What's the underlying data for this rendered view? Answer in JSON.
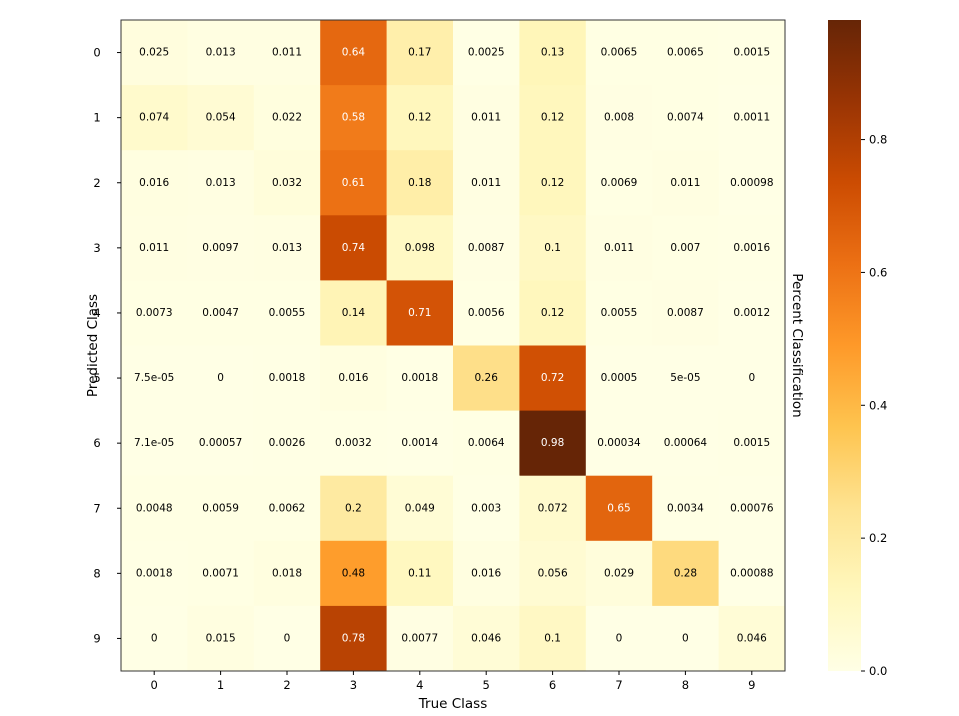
{
  "chart_data": {
    "type": "heatmap",
    "title": "",
    "xlabel": "True Class",
    "ylabel": "Predicted Class",
    "x_categories": [
      "0",
      "1",
      "2",
      "3",
      "4",
      "5",
      "6",
      "7",
      "8",
      "9"
    ],
    "y_categories": [
      "0",
      "1",
      "2",
      "3",
      "4",
      "5",
      "6",
      "7",
      "8",
      "9"
    ],
    "values": [
      [
        0.025,
        0.013,
        0.011,
        0.64,
        0.17,
        0.0025,
        0.13,
        0.0065,
        0.0065,
        0.0015
      ],
      [
        0.074,
        0.054,
        0.022,
        0.58,
        0.12,
        0.011,
        0.12,
        0.008,
        0.0074,
        0.0011
      ],
      [
        0.016,
        0.013,
        0.032,
        0.61,
        0.18,
        0.011,
        0.12,
        0.0069,
        0.011,
        0.00098
      ],
      [
        0.011,
        0.0097,
        0.013,
        0.74,
        0.098,
        0.0087,
        0.1,
        0.011,
        0.007,
        0.0016
      ],
      [
        0.0073,
        0.0047,
        0.0055,
        0.14,
        0.71,
        0.0056,
        0.12,
        0.0055,
        0.0087,
        0.0012
      ],
      [
        7.5e-05,
        0,
        0.0018,
        0.016,
        0.0018,
        0.26,
        0.72,
        0.0005,
        5e-05,
        0
      ],
      [
        7.1e-05,
        0.00057,
        0.0026,
        0.0032,
        0.0014,
        0.0064,
        0.98,
        0.00034,
        0.00064,
        0.0015
      ],
      [
        0.0048,
        0.0059,
        0.0062,
        0.2,
        0.049,
        0.003,
        0.072,
        0.65,
        0.0034,
        0.00076
      ],
      [
        0.0018,
        0.0071,
        0.018,
        0.48,
        0.11,
        0.016,
        0.056,
        0.029,
        0.28,
        0.00088
      ],
      [
        0,
        0.015,
        0,
        0.78,
        0.0077,
        0.046,
        0.1,
        0,
        0,
        0.046
      ]
    ],
    "labels": [
      [
        "0.025",
        "0.013",
        "0.011",
        "0.64",
        "0.17",
        "0.0025",
        "0.13",
        "0.0065",
        "0.0065",
        "0.0015"
      ],
      [
        "0.074",
        "0.054",
        "0.022",
        "0.58",
        "0.12",
        "0.011",
        "0.12",
        "0.008",
        "0.0074",
        "0.0011"
      ],
      [
        "0.016",
        "0.013",
        "0.032",
        "0.61",
        "0.18",
        "0.011",
        "0.12",
        "0.0069",
        "0.011",
        "0.00098"
      ],
      [
        "0.011",
        "0.0097",
        "0.013",
        "0.74",
        "0.098",
        "0.0087",
        "0.1",
        "0.011",
        "0.007",
        "0.0016"
      ],
      [
        "0.0073",
        "0.0047",
        "0.0055",
        "0.14",
        "0.71",
        "0.0056",
        "0.12",
        "0.0055",
        "0.0087",
        "0.0012"
      ],
      [
        "7.5e-05",
        "0",
        "0.0018",
        "0.016",
        "0.0018",
        "0.26",
        "0.72",
        "0.0005",
        "5e-05",
        "0"
      ],
      [
        "7.1e-05",
        "0.00057",
        "0.0026",
        "0.0032",
        "0.0014",
        "0.0064",
        "0.98",
        "0.00034",
        "0.00064",
        "0.0015"
      ],
      [
        "0.0048",
        "0.0059",
        "0.0062",
        "0.2",
        "0.049",
        "0.003",
        "0.072",
        "0.65",
        "0.0034",
        "0.00076"
      ],
      [
        "0.0018",
        "0.0071",
        "0.018",
        "0.48",
        "0.11",
        "0.016",
        "0.056",
        "0.029",
        "0.28",
        "0.00088"
      ],
      [
        "0",
        "0.015",
        "0",
        "0.78",
        "0.0077",
        "0.046",
        "0.1",
        "0",
        "0",
        "0.046"
      ]
    ],
    "colormap": "YlOrBr",
    "colormap_stops": [
      "#ffffe5",
      "#fff7bc",
      "#fee391",
      "#fec44f",
      "#fe9929",
      "#ec7014",
      "#cc4c02",
      "#993404",
      "#662506"
    ],
    "value_range": [
      0,
      0.98
    ],
    "colorbar": {
      "label": "Percent Classification",
      "ticks": [
        0.0,
        0.2,
        0.4,
        0.6,
        0.8
      ],
      "tick_labels": [
        "0.0",
        "0.2",
        "0.4",
        "0.6",
        "0.8"
      ],
      "placement": "right"
    },
    "text_color_dark": "#000000",
    "text_color_light": "#ffffff",
    "grid": false
  }
}
